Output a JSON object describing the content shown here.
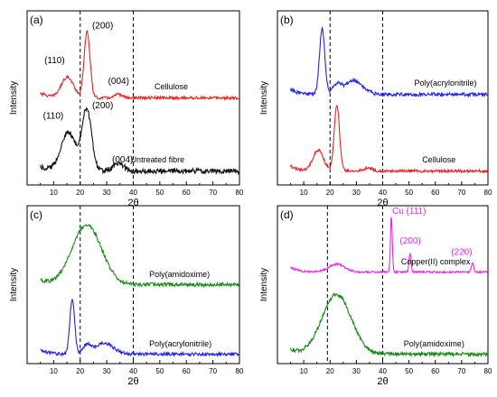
{
  "chart_data": [
    {
      "type": "line",
      "panel": "(a)",
      "xlabel": "2θ",
      "ylabel": "Intensity",
      "xlim": [
        0,
        80
      ],
      "xticks": [
        10,
        20,
        30,
        40,
        50,
        60,
        70,
        80
      ],
      "ylim": [
        0,
        1
      ],
      "vlines": [
        20,
        40
      ],
      "series": [
        {
          "name": "Cellulose",
          "color": "#ee2222",
          "baseline": 0.5,
          "noise": 0.008,
          "label_x": 48,
          "peaks": [
            {
              "x": 15.2,
              "h": 0.12,
              "w": 2.3
            },
            {
              "x": 22.6,
              "h": 0.38,
              "w": 1.1
            },
            {
              "x": 34.5,
              "h": 0.02,
              "w": 1.5
            }
          ],
          "annotations": [
            {
              "text": "(110)",
              "x": 6.5,
              "y": 0.7
            },
            {
              "text": "(200)",
              "x": 24.5,
              "y": 0.9
            },
            {
              "text": "(004)",
              "x": 30.5,
              "y": 0.58
            }
          ]
        },
        {
          "name": "Untreated fibre",
          "color": "#111111",
          "baseline": 0.08,
          "noise": 0.015,
          "label_x": 39,
          "peaks": [
            {
              "x": 15.5,
              "h": 0.22,
              "w": 2.8
            },
            {
              "x": 22.5,
              "h": 0.35,
              "w": 1.8
            },
            {
              "x": 34.5,
              "h": 0.04,
              "w": 2.2
            }
          ],
          "annotations": [
            {
              "text": "(110)",
              "x": 6,
              "y": 0.38
            },
            {
              "text": "(200)",
              "x": 24.5,
              "y": 0.44
            },
            {
              "text": "(004)",
              "x": 32,
              "y": 0.13
            }
          ]
        }
      ]
    },
    {
      "type": "line",
      "panel": "(b)",
      "xlabel": "2θ",
      "ylabel": "Intensity",
      "xlim": [
        0,
        80
      ],
      "xticks": [
        10,
        20,
        30,
        40,
        50,
        60,
        70,
        80
      ],
      "ylim": [
        0,
        1
      ],
      "vlines": [
        20,
        40
      ],
      "series": [
        {
          "name": "Poly(acrylonitrile)",
          "color": "#2222ee",
          "baseline": 0.52,
          "noise": 0.01,
          "label_x": 52,
          "peaks": [
            {
              "x": 17,
              "h": 0.38,
              "w": 1.0
            },
            {
              "x": 22.5,
              "h": 0.05,
              "w": 1.5
            },
            {
              "x": 29,
              "h": 0.08,
              "w": 3.5
            }
          ],
          "annotations": []
        },
        {
          "name": "Cellulose",
          "color": "#ee2222",
          "baseline": 0.08,
          "noise": 0.008,
          "label_x": 55,
          "peaks": [
            {
              "x": 15.5,
              "h": 0.12,
              "w": 2.0
            },
            {
              "x": 22.6,
              "h": 0.38,
              "w": 1.0
            },
            {
              "x": 34.5,
              "h": 0.02,
              "w": 1.5
            }
          ],
          "annotations": []
        }
      ]
    },
    {
      "type": "line",
      "panel": "(c)",
      "xlabel": "2θ",
      "ylabel": "Intensity",
      "xlim": [
        0,
        80
      ],
      "xticks": [
        10,
        20,
        30,
        40,
        50,
        60,
        70,
        80
      ],
      "ylim": [
        0,
        1
      ],
      "vlines": [
        20,
        40
      ],
      "series": [
        {
          "name": "Poly(amidoxime)",
          "color": "#1a8a1a",
          "baseline": 0.5,
          "noise": 0.012,
          "label_x": 46,
          "peaks": [
            {
              "x": 22.5,
              "h": 0.38,
              "w": 5.5
            }
          ],
          "annotations": []
        },
        {
          "name": "Poly(acrylonitrile)",
          "color": "#2222ee",
          "baseline": 0.06,
          "noise": 0.01,
          "label_x": 46,
          "peaks": [
            {
              "x": 17,
              "h": 0.35,
              "w": 0.9
            },
            {
              "x": 22.5,
              "h": 0.05,
              "w": 1.5
            },
            {
              "x": 29,
              "h": 0.07,
              "w": 3.5
            }
          ],
          "annotations": []
        }
      ]
    },
    {
      "type": "line",
      "panel": "(d)",
      "xlabel": "2θ",
      "ylabel": "Intensity",
      "xlim": [
        0,
        80
      ],
      "xticks": [
        10,
        20,
        30,
        40,
        50,
        60,
        70,
        80
      ],
      "ylim": [
        0,
        1
      ],
      "vlines": [
        19,
        40
      ],
      "series": [
        {
          "name": "Copper(II) complex",
          "color": "#ee22ee",
          "baseline": 0.58,
          "noise": 0.006,
          "label_x": 47,
          "peaks": [
            {
              "x": 22.5,
              "h": 0.05,
              "w": 3.0
            },
            {
              "x": 43.3,
              "h": 0.35,
              "w": 0.35
            },
            {
              "x": 50.4,
              "h": 0.12,
              "w": 0.4
            },
            {
              "x": 74.1,
              "h": 0.06,
              "w": 0.45
            }
          ],
          "annotations": [
            {
              "text": "Cu (111)",
              "x": 43.6,
              "y": 0.95
            },
            {
              "text": "(200)",
              "x": 46.5,
              "y": 0.76
            },
            {
              "text": "(220)",
              "x": 66,
              "y": 0.69
            }
          ]
        },
        {
          "name": "Poly(amidoxime)",
          "color": "#1a8a1a",
          "baseline": 0.06,
          "noise": 0.012,
          "label_x": 48,
          "peaks": [
            {
              "x": 22.5,
              "h": 0.38,
              "w": 5.5
            }
          ],
          "annotations": []
        }
      ]
    }
  ]
}
